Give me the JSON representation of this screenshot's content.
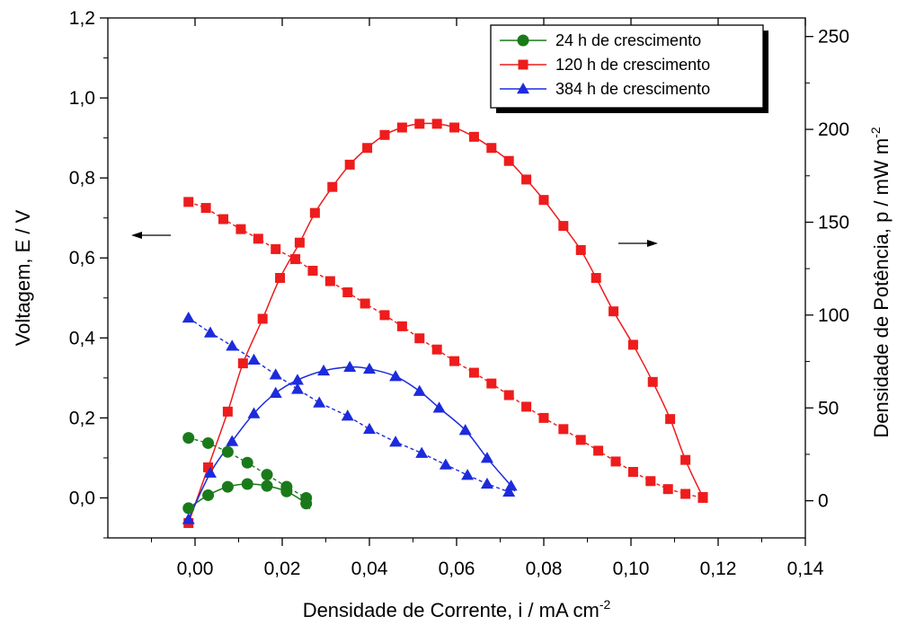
{
  "chart_data": {
    "type": "scatter",
    "xlabel": "Densidade de Corrente, i / mA cm",
    "xlabel_sup": "-2",
    "ylabel_left": "Voltagem, E / V",
    "ylabel_right": "Densidade de Potência, p / mW m",
    "ylabel_right_sup": "-2",
    "xlim": [
      -0.02,
      0.14
    ],
    "ylim_left": [
      -0.1,
      1.2
    ],
    "ylim_right": [
      -20,
      260
    ],
    "x_ticks": [
      "0,00",
      "0,02",
      "0,04",
      "0,06",
      "0,08",
      "0,10",
      "0,12",
      "0,14"
    ],
    "y_left_ticks": [
      "0,0",
      "0,2",
      "0,4",
      "0,6",
      "0,8",
      "1,0",
      "1,2"
    ],
    "y_right_ticks": [
      "0",
      "50",
      "100",
      "150",
      "200",
      "250"
    ],
    "legend_position": "top-right",
    "grid": false,
    "series": [
      {
        "name": "24 h de crescimento",
        "color": "#1a7a1a",
        "marker": "circle",
        "voltage": {
          "x": [
            -0.0015,
            0.003,
            0.0075,
            0.012,
            0.0165,
            0.021,
            0.0255
          ],
          "y": [
            0.15,
            0.137,
            0.115,
            0.088,
            0.058,
            0.028,
            0.0
          ]
        },
        "power": {
          "x": [
            -0.0015,
            0.003,
            0.0075,
            0.012,
            0.0165,
            0.021,
            0.0255
          ],
          "y": [
            -4,
            3,
            7.5,
            9,
            8,
            5,
            -1.5
          ]
        }
      },
      {
        "name": "120 h de crescimento",
        "color": "#ee1c1c",
        "marker": "square",
        "voltage": {
          "x": [
            -0.0015,
            0.0025,
            0.0065,
            0.0105,
            0.0145,
            0.0185,
            0.023,
            0.027,
            0.031,
            0.035,
            0.039,
            0.0435,
            0.0475,
            0.0515,
            0.0555,
            0.0595,
            0.064,
            0.068,
            0.072,
            0.076,
            0.08,
            0.0845,
            0.0885,
            0.0925,
            0.0965,
            0.1005,
            0.1045,
            0.1085,
            0.1125,
            0.1165
          ],
          "y": [
            0.74,
            0.725,
            0.697,
            0.672,
            0.648,
            0.622,
            0.597,
            0.568,
            0.542,
            0.514,
            0.486,
            0.457,
            0.429,
            0.399,
            0.371,
            0.342,
            0.313,
            0.286,
            0.257,
            0.228,
            0.2,
            0.172,
            0.145,
            0.118,
            0.091,
            0.065,
            0.042,
            0.022,
            0.01,
            0.0
          ]
        },
        "power": {
          "x": [
            -0.0015,
            0.003,
            0.0075,
            0.011,
            0.0155,
            0.0195,
            0.024,
            0.0275,
            0.0315,
            0.0355,
            0.0395,
            0.0435,
            0.0475,
            0.0515,
            0.0555,
            0.0595,
            0.064,
            0.068,
            0.072,
            0.076,
            0.08,
            0.0845,
            0.0885,
            0.092,
            0.096,
            0.1005,
            0.105,
            0.109,
            0.1125,
            0.1165
          ],
          "y": [
            -12,
            18,
            48,
            74,
            98,
            120,
            139,
            155,
            169,
            181,
            190,
            197,
            201,
            203,
            203,
            201,
            196,
            190,
            183,
            173,
            162,
            148,
            135,
            120,
            102,
            84,
            64,
            44,
            22,
            2
          ]
        }
      },
      {
        "name": "384 h de crescimento",
        "color": "#1c2bdc",
        "marker": "triangle",
        "voltage": {
          "x": [
            -0.0015,
            0.0035,
            0.0085,
            0.0135,
            0.0185,
            0.0235,
            0.0285,
            0.035,
            0.04,
            0.046,
            0.052,
            0.0575,
            0.0625,
            0.067,
            0.072
          ],
          "y": [
            0.45,
            0.413,
            0.38,
            0.345,
            0.308,
            0.272,
            0.238,
            0.205,
            0.172,
            0.14,
            0.112,
            0.083,
            0.057,
            0.035,
            0.015
          ]
        },
        "power": {
          "x": [
            -0.0015,
            0.0035,
            0.0085,
            0.0135,
            0.0185,
            0.0235,
            0.0295,
            0.0355,
            0.04,
            0.046,
            0.0515,
            0.056,
            0.062,
            0.067,
            0.0725
          ],
          "y": [
            -10,
            15,
            32,
            47,
            58,
            65,
            70,
            72,
            71,
            67,
            59,
            50,
            38,
            23,
            8
          ]
        }
      }
    ],
    "annotations": [
      {
        "type": "arrow",
        "direction": "left",
        "points_to": "left-axis"
      },
      {
        "type": "arrow",
        "direction": "right",
        "points_to": "right-axis"
      }
    ]
  }
}
